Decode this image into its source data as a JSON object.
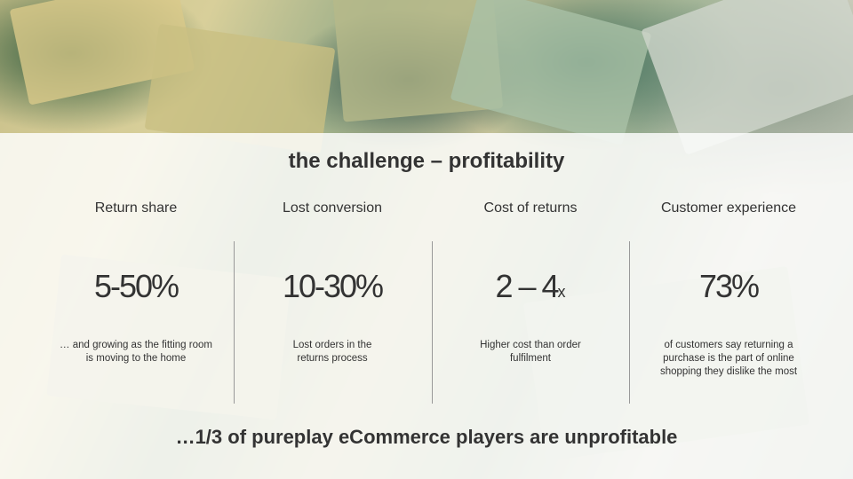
{
  "title": "the challenge – profitability",
  "columns": [
    {
      "heading": "Return share",
      "stat": "5-50%",
      "description": "… and growing as the fitting room is moving to the home"
    },
    {
      "heading": "Lost conversion",
      "stat": "10-30%",
      "description": "Lost orders in the returns process"
    },
    {
      "heading": "Cost of returns",
      "stat": "2 – 4",
      "stat_suffix": "x",
      "description": "Higher cost than order fulfilment"
    },
    {
      "heading": "Customer experience",
      "stat": "73%",
      "description": "of customers say returning a purchase is the part of online shopping they dislike the most"
    }
  ],
  "footer": "…1/3 of pureplay eCommerce players are unprofitable"
}
